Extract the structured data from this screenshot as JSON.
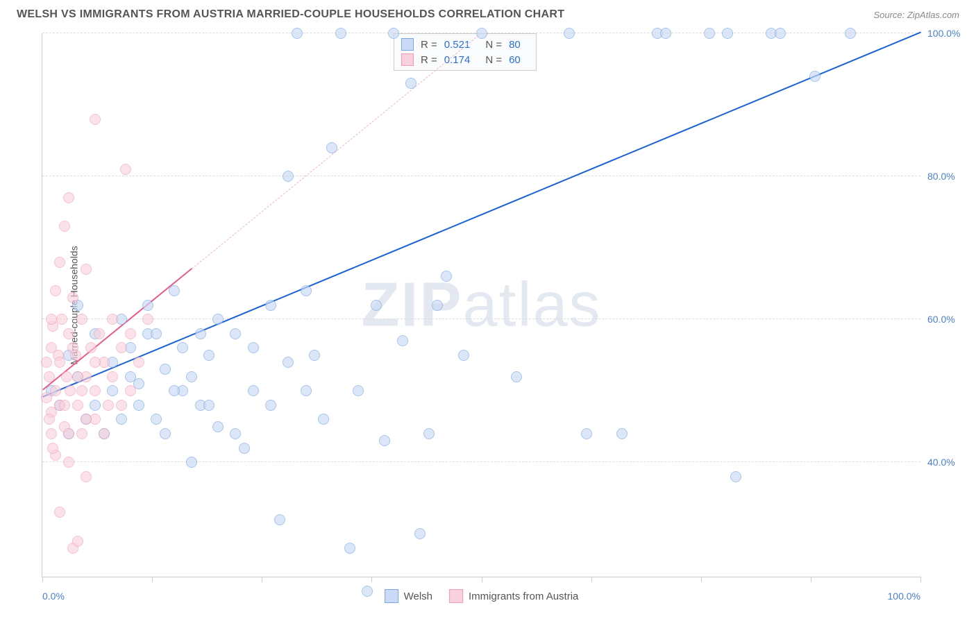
{
  "title": "WELSH VS IMMIGRANTS FROM AUSTRIA MARRIED-COUPLE HOUSEHOLDS CORRELATION CHART",
  "source": "Source: ZipAtlas.com",
  "y_axis_label": "Married-couple Households",
  "watermark_bold": "ZIP",
  "watermark_light": "atlas",
  "x_min_label": "0.0%",
  "x_max_label": "100.0%",
  "chart": {
    "type": "scatter",
    "xlim": [
      0,
      100
    ],
    "ylim": [
      24,
      100
    ],
    "y_ticks": [
      40,
      60,
      80,
      100
    ],
    "y_tick_labels": [
      "40.0%",
      "60.0%",
      "80.0%",
      "100.0%"
    ],
    "x_ticks": [
      0,
      12.5,
      25,
      37.5,
      50,
      62.5,
      75,
      87.5,
      100
    ],
    "background_color": "#ffffff",
    "grid_color": "#dddddd",
    "axis_color": "#cccccc",
    "label_color": "#4a7fd6",
    "point_radius": 8,
    "point_border_width": 1.5
  },
  "series": [
    {
      "name": "Welsh",
      "fill": "#c9dbf5",
      "stroke": "#7ba6e0",
      "fill_opacity": 0.65,
      "r_value": "0.521",
      "n_value": "80",
      "regression": {
        "x1": 0,
        "y1": 49,
        "x2": 100,
        "y2": 100,
        "color": "#1a62d6",
        "width": 2.5,
        "dash": "solid",
        "dash_ext_x1": 40,
        "dash_ext_y1": 100,
        "dash_ext_color": "#f5b3c1"
      },
      "points": [
        [
          1,
          50
        ],
        [
          2,
          48
        ],
        [
          3,
          55
        ],
        [
          4,
          52
        ],
        [
          5,
          46
        ],
        [
          6,
          58
        ],
        [
          8,
          54
        ],
        [
          9,
          60
        ],
        [
          10,
          56
        ],
        [
          11,
          51
        ],
        [
          12,
          58
        ],
        [
          13,
          46
        ],
        [
          14,
          53
        ],
        [
          15,
          64
        ],
        [
          16,
          50
        ],
        [
          17,
          40
        ],
        [
          18,
          48
        ],
        [
          19,
          55
        ],
        [
          20,
          45
        ],
        [
          22,
          58
        ],
        [
          23,
          42
        ],
        [
          24,
          50
        ],
        [
          26,
          62
        ],
        [
          27,
          32
        ],
        [
          28,
          80
        ],
        [
          29,
          100
        ],
        [
          30,
          64
        ],
        [
          31,
          55
        ],
        [
          32,
          46
        ],
        [
          33,
          84
        ],
        [
          34,
          100
        ],
        [
          35,
          28
        ],
        [
          36,
          50
        ],
        [
          37,
          22
        ],
        [
          38,
          62
        ],
        [
          39,
          43
        ],
        [
          40,
          100
        ],
        [
          41,
          57
        ],
        [
          42,
          93
        ],
        [
          43,
          30
        ],
        [
          44,
          44
        ],
        [
          45,
          62
        ],
        [
          46,
          66
        ],
        [
          48,
          55
        ],
        [
          50,
          100
        ],
        [
          54,
          52
        ],
        [
          60,
          100
        ],
        [
          62,
          44
        ],
        [
          66,
          44
        ],
        [
          70,
          100
        ],
        [
          71,
          100
        ],
        [
          76,
          100
        ],
        [
          78,
          100
        ],
        [
          79,
          38
        ],
        [
          83,
          100
        ],
        [
          84,
          100
        ],
        [
          88,
          94
        ],
        [
          92,
          100
        ],
        [
          3,
          44
        ],
        [
          4,
          62
        ],
        [
          6,
          48
        ],
        [
          7,
          44
        ],
        [
          8,
          50
        ],
        [
          9,
          46
        ],
        [
          10,
          52
        ],
        [
          11,
          48
        ],
        [
          12,
          62
        ],
        [
          13,
          58
        ],
        [
          14,
          44
        ],
        [
          15,
          50
        ],
        [
          16,
          56
        ],
        [
          17,
          52
        ],
        [
          18,
          58
        ],
        [
          19,
          48
        ],
        [
          20,
          60
        ],
        [
          22,
          44
        ],
        [
          24,
          56
        ],
        [
          26,
          48
        ],
        [
          28,
          54
        ],
        [
          30,
          50
        ]
      ]
    },
    {
      "name": "Immigrants from Austria",
      "fill": "#f9d0db",
      "stroke": "#f29bb4",
      "fill_opacity": 0.6,
      "r_value": "0.174",
      "n_value": "60",
      "regression": {
        "x1": 0,
        "y1": 50,
        "x2": 17,
        "y2": 67,
        "color": "#e95a8b",
        "width": 2,
        "dash": "solid",
        "dash_ext_x2": 50,
        "dash_ext_y2": 100,
        "dash_ext_color": "#f5b3c1"
      },
      "points": [
        [
          0.5,
          49
        ],
        [
          0.8,
          52
        ],
        [
          1,
          47
        ],
        [
          1,
          56
        ],
        [
          1,
          44
        ],
        [
          1.2,
          59
        ],
        [
          1.5,
          50
        ],
        [
          1.5,
          41
        ],
        [
          1.8,
          55
        ],
        [
          2,
          48
        ],
        [
          2,
          68
        ],
        [
          2,
          33
        ],
        [
          2.2,
          60
        ],
        [
          2.5,
          45
        ],
        [
          2.5,
          73
        ],
        [
          2.8,
          52
        ],
        [
          3,
          58
        ],
        [
          3,
          40
        ],
        [
          3,
          77
        ],
        [
          3.2,
          50
        ],
        [
          3.5,
          63
        ],
        [
          3.5,
          28
        ],
        [
          3.8,
          55
        ],
        [
          4,
          48
        ],
        [
          4,
          29
        ],
        [
          4.5,
          60
        ],
        [
          4.5,
          44
        ],
        [
          5,
          52
        ],
        [
          5,
          67
        ],
        [
          5,
          38
        ],
        [
          5.5,
          56
        ],
        [
          6,
          50
        ],
        [
          6,
          46
        ],
        [
          6,
          88
        ],
        [
          6.5,
          58
        ],
        [
          7,
          44
        ],
        [
          7,
          54
        ],
        [
          7.5,
          48
        ],
        [
          8,
          60
        ],
        [
          8,
          52
        ],
        [
          9,
          56
        ],
        [
          9,
          48
        ],
        [
          9.5,
          81
        ],
        [
          10,
          58
        ],
        [
          10,
          50
        ],
        [
          11,
          54
        ],
        [
          12,
          60
        ],
        [
          0.5,
          54
        ],
        [
          0.8,
          46
        ],
        [
          1,
          60
        ],
        [
          1.2,
          42
        ],
        [
          1.5,
          64
        ],
        [
          2,
          54
        ],
        [
          2.5,
          48
        ],
        [
          3,
          44
        ],
        [
          3.5,
          56
        ],
        [
          4,
          52
        ],
        [
          4.5,
          50
        ],
        [
          5,
          46
        ],
        [
          6,
          54
        ]
      ]
    }
  ],
  "legend": {
    "series1_label": "Welsh",
    "series2_label": "Immigrants from Austria"
  }
}
